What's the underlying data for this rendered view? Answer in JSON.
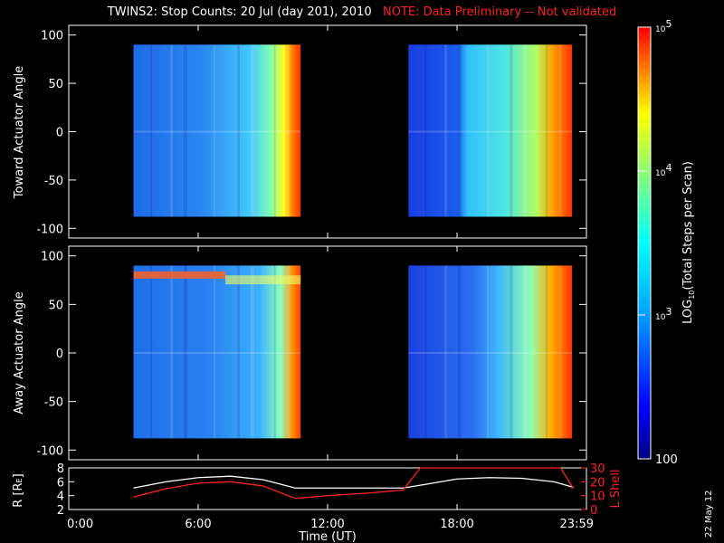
{
  "title": "TWINS2: Stop Counts: 20 Jul (day 201), 2010",
  "note": "NOTE: Data Preliminary -- Not validated",
  "date_stamp": "22 May 12",
  "colors": {
    "note": "#ff2020",
    "line_white": "#ffffff",
    "line_red": "#ff2020"
  },
  "chart_data": [
    {
      "type": "heatmap",
      "panel": "toward",
      "ylabel": "Toward Actuator Angle",
      "ylim": [
        -110,
        110
      ],
      "yticks": [
        100,
        50,
        0,
        -50,
        -100
      ],
      "data_blocks": [
        {
          "start": "03:00",
          "end": "10:45",
          "angle_range": [
            -88,
            90
          ]
        },
        {
          "start": "15:45",
          "end": "23:20",
          "angle_range": [
            -88,
            90
          ]
        }
      ]
    },
    {
      "type": "heatmap",
      "panel": "away",
      "ylabel": "Away Actuator Angle",
      "ylim": [
        -110,
        110
      ],
      "yticks": [
        100,
        50,
        0,
        -50,
        -100
      ],
      "data_blocks": [
        {
          "start": "03:00",
          "end": "10:45",
          "angle_range": [
            -88,
            90
          ]
        },
        {
          "start": "15:45",
          "end": "23:20",
          "angle_range": [
            -88,
            90
          ]
        }
      ]
    },
    {
      "type": "line",
      "panel": "orbit",
      "xlabel": "Time (UT)",
      "ylabel_left": "R [R",
      "ylabel_left_sub": "E",
      "ylabel_right": "L Shell",
      "xticks": [
        "0:00",
        "6:00",
        "12:00",
        "18:00",
        "23:59"
      ],
      "xtick_hours": [
        0,
        6,
        12,
        18,
        24
      ],
      "xlim": [
        0,
        24
      ],
      "ylim_left": [
        2,
        8
      ],
      "yticks_left": [
        2,
        4,
        6,
        8
      ],
      "ylim_right": [
        0,
        30
      ],
      "yticks_right": [
        0,
        10,
        20,
        30
      ],
      "series": [
        {
          "color": "white",
          "x": [
            3,
            4.5,
            6,
            7.5,
            9,
            10.5,
            12,
            14,
            15.5,
            16.5,
            18,
            19.5,
            21,
            22.5,
            23.4
          ],
          "values": [
            5.1,
            6.0,
            6.6,
            6.8,
            6.3,
            5.1,
            5.1,
            5.1,
            5.1,
            5.6,
            6.4,
            6.6,
            6.5,
            6.0,
            5.2
          ]
        },
        {
          "color": "red",
          "x": [
            3,
            4.5,
            6,
            7.5,
            9,
            10.5,
            12,
            14,
            15.5,
            16.3,
            22.8,
            23.4
          ],
          "values": [
            9,
            15,
            19,
            20,
            17,
            8,
            10,
            12,
            14,
            30,
            30,
            15
          ]
        }
      ]
    }
  ],
  "colorbar": {
    "label": "LOG",
    "label_sub": "10",
    "label_rest": "(Total Steps per Scan)",
    "range": [
      100,
      100000
    ],
    "ticks": [
      {
        "base": "10",
        "exp": "5",
        "value": 100000
      },
      {
        "base": "10",
        "exp": "4",
        "value": 10000
      },
      {
        "base": "10",
        "exp": "3",
        "value": 1000
      },
      {
        "base": "",
        "exp": "",
        "value": 100,
        "text": "100"
      }
    ]
  }
}
